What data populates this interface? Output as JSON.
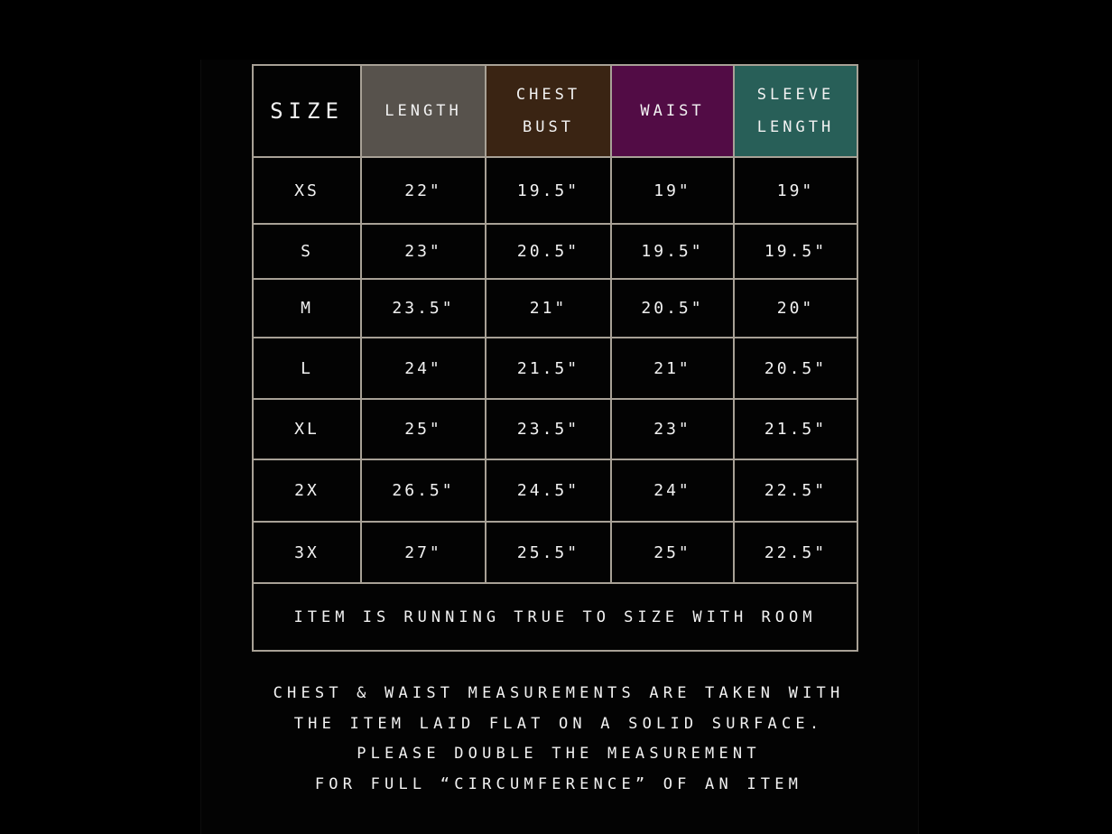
{
  "colors": {
    "background": "#000000",
    "border": "#a8a196",
    "length_header": "#57524c",
    "chest_header": "#3a2413",
    "waist_header": "#520c45",
    "sleeve_header": "#285f58"
  },
  "table": {
    "headers": [
      {
        "line1": "SIZE",
        "line2": ""
      },
      {
        "line1": "LENGTH",
        "line2": ""
      },
      {
        "line1": "CHEST",
        "line2": "BUST"
      },
      {
        "line1": "WAIST",
        "line2": ""
      },
      {
        "line1": "SLEEVE",
        "line2": "LENGTH"
      }
    ],
    "rows": [
      [
        "XS",
        "22\"",
        "19.5\"",
        "19\"",
        "19\""
      ],
      [
        "S",
        "23\"",
        "20.5\"",
        "19.5\"",
        "19.5\""
      ],
      [
        "M",
        "23.5\"",
        "21\"",
        "20.5\"",
        "20\""
      ],
      [
        "L",
        "24\"",
        "21.5\"",
        "21\"",
        "20.5\""
      ],
      [
        "XL",
        "25\"",
        "23.5\"",
        "23\"",
        "21.5\""
      ],
      [
        "2X",
        "26.5\"",
        "24.5\"",
        "24\"",
        "22.5\""
      ],
      [
        "3X",
        "27\"",
        "25.5\"",
        "25\"",
        "22.5\""
      ]
    ],
    "footer_note": "ITEM IS RUNNING TRUE TO SIZE WITH ROOM"
  },
  "notes": [
    "CHEST & WAIST MEASUREMENTS ARE TAKEN WITH",
    "THE ITEM LAID FLAT ON A SOLID SURFACE.",
    "PLEASE DOUBLE THE MEASUREMENT",
    "FOR FULL “CIRCUMFERENCE” OF AN ITEM"
  ]
}
